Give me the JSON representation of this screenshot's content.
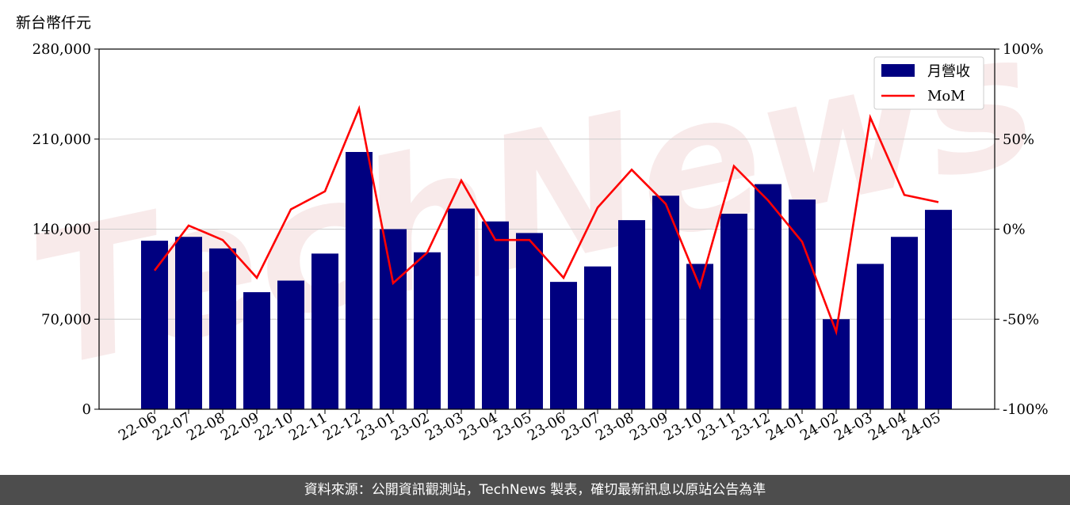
{
  "unit_label": "新台幣仟元",
  "footer_text": "資料來源：公開資訊觀測站，TechNews 製表，確切最新訊息以原站公告為準",
  "watermark_text": "TechNews",
  "colors": {
    "bar": "#000080",
    "line": "#ff0000",
    "grid": "#cccccc",
    "footer_bg": "#4d4d4d"
  },
  "chart_data": {
    "type": "bar",
    "categories": [
      "22-06",
      "22-07",
      "22-08",
      "22-09",
      "22-10",
      "22-11",
      "22-12",
      "23-01",
      "23-02",
      "23-03",
      "23-04",
      "23-05",
      "23-06",
      "23-07",
      "23-08",
      "23-09",
      "23-10",
      "23-11",
      "23-12",
      "24-01",
      "24-02",
      "24-03",
      "24-04",
      "24-05"
    ],
    "series": [
      {
        "name": "月營收",
        "type": "bar",
        "axis": "left",
        "values": [
          131000,
          134000,
          125000,
          91000,
          100000,
          121000,
          200000,
          140000,
          122000,
          156000,
          146000,
          137000,
          99000,
          111000,
          147000,
          166000,
          113000,
          152000,
          175000,
          163000,
          70000,
          113000,
          134000,
          155000
        ]
      },
      {
        "name": "MoM",
        "type": "line",
        "axis": "right",
        "values": [
          -23,
          2,
          -6,
          -27,
          11,
          21,
          67,
          -30,
          -13,
          27,
          -6,
          -6,
          -27,
          12,
          33,
          14,
          -32,
          35,
          16,
          -7,
          -57,
          62,
          19,
          15
        ]
      }
    ],
    "y_left": {
      "ylim": [
        0,
        280000
      ],
      "ticks": [
        "0",
        "70,000",
        "140,000",
        "210,000",
        "280,000"
      ],
      "tick_values": [
        0,
        70000,
        140000,
        210000,
        280000
      ]
    },
    "y_right": {
      "ylim": [
        -100,
        100
      ],
      "ticks": [
        "-100%",
        "-50%",
        "0%",
        "50%",
        "100%"
      ],
      "tick_values": [
        -100,
        -50,
        0,
        50,
        100
      ]
    },
    "grid": "horizontal",
    "legend_position": "top-right"
  }
}
